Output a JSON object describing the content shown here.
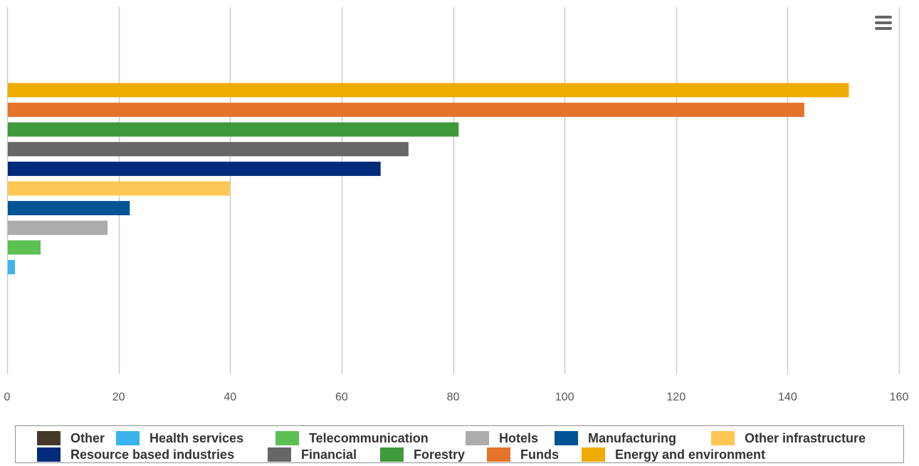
{
  "chart_data": {
    "type": "bar",
    "orientation": "horizontal",
    "categories": [
      "Energy and environment",
      "Funds",
      "Forestry",
      "Financial",
      "Resource based industries",
      "Other infrastructure",
      "Manufacturing",
      "Hotels",
      "Telecommunication",
      "Health services",
      "Other"
    ],
    "values": [
      151,
      143,
      81,
      72,
      67,
      40,
      22,
      18,
      6,
      1.4,
      0
    ],
    "colors": [
      "#f0ab00",
      "#e57329",
      "#3e9a3a",
      "#666666",
      "#002a7a",
      "#fec655",
      "#005394",
      "#acacac",
      "#5cc053",
      "#3ab4ea",
      "#45392a"
    ],
    "xlim": [
      0,
      160
    ],
    "xticks": [
      "0",
      "20",
      "40",
      "60",
      "80",
      "100",
      "120",
      "140",
      "160"
    ],
    "grid": "vertical",
    "legend_position": "bottom",
    "title": "",
    "xlabel": "",
    "ylabel": ""
  },
  "legend": {
    "items": [
      {
        "label": "Other",
        "color": "#45392a"
      },
      {
        "label": "Health services",
        "color": "#3ab4ea"
      },
      {
        "label": "Telecommunication",
        "color": "#5cc053"
      },
      {
        "label": "Hotels",
        "color": "#acacac"
      },
      {
        "label": "Manufacturing",
        "color": "#005394"
      },
      {
        "label": "Other infrastructure",
        "color": "#fec655"
      },
      {
        "label": "Resource based industries",
        "color": "#002a7a"
      },
      {
        "label": "Financial",
        "color": "#666666"
      },
      {
        "label": "Forestry",
        "color": "#3e9a3a"
      },
      {
        "label": "Funds",
        "color": "#e57329"
      },
      {
        "label": "Energy and environment",
        "color": "#f0ab00"
      }
    ]
  },
  "menu": {
    "icon": "hamburger-menu-icon"
  }
}
